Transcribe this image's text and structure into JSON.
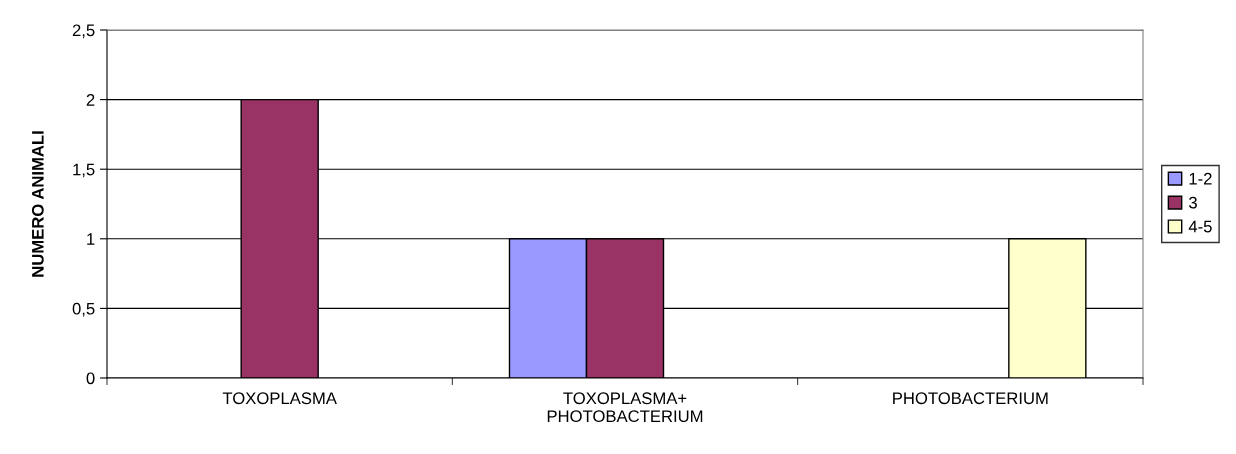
{
  "chart_data": {
    "type": "bar",
    "ylabel": "NUMERO ANIMALI",
    "categories": [
      "TOXOPLASMA",
      "TOXOPLASMA+\nPHOTOBACTERIUM",
      "PHOTOBACTERIUM"
    ],
    "series": [
      {
        "name": "1-2",
        "color": "#9999ff",
        "values": [
          null,
          1,
          null
        ]
      },
      {
        "name": "3",
        "color": "#993366",
        "values": [
          2,
          1,
          null
        ]
      },
      {
        "name": "4-5",
        "color": "#ffffcc",
        "values": [
          null,
          null,
          1
        ]
      }
    ],
    "ylim": [
      0,
      2.5
    ],
    "yticks": [
      0,
      {
        "value": 0.5,
        "label": "0,5"
      },
      1,
      {
        "value": 1.5,
        "label": "1,5"
      },
      2,
      {
        "value": 2.5,
        "label": "2,5"
      }
    ],
    "grid": "y",
    "legend": "right"
  }
}
